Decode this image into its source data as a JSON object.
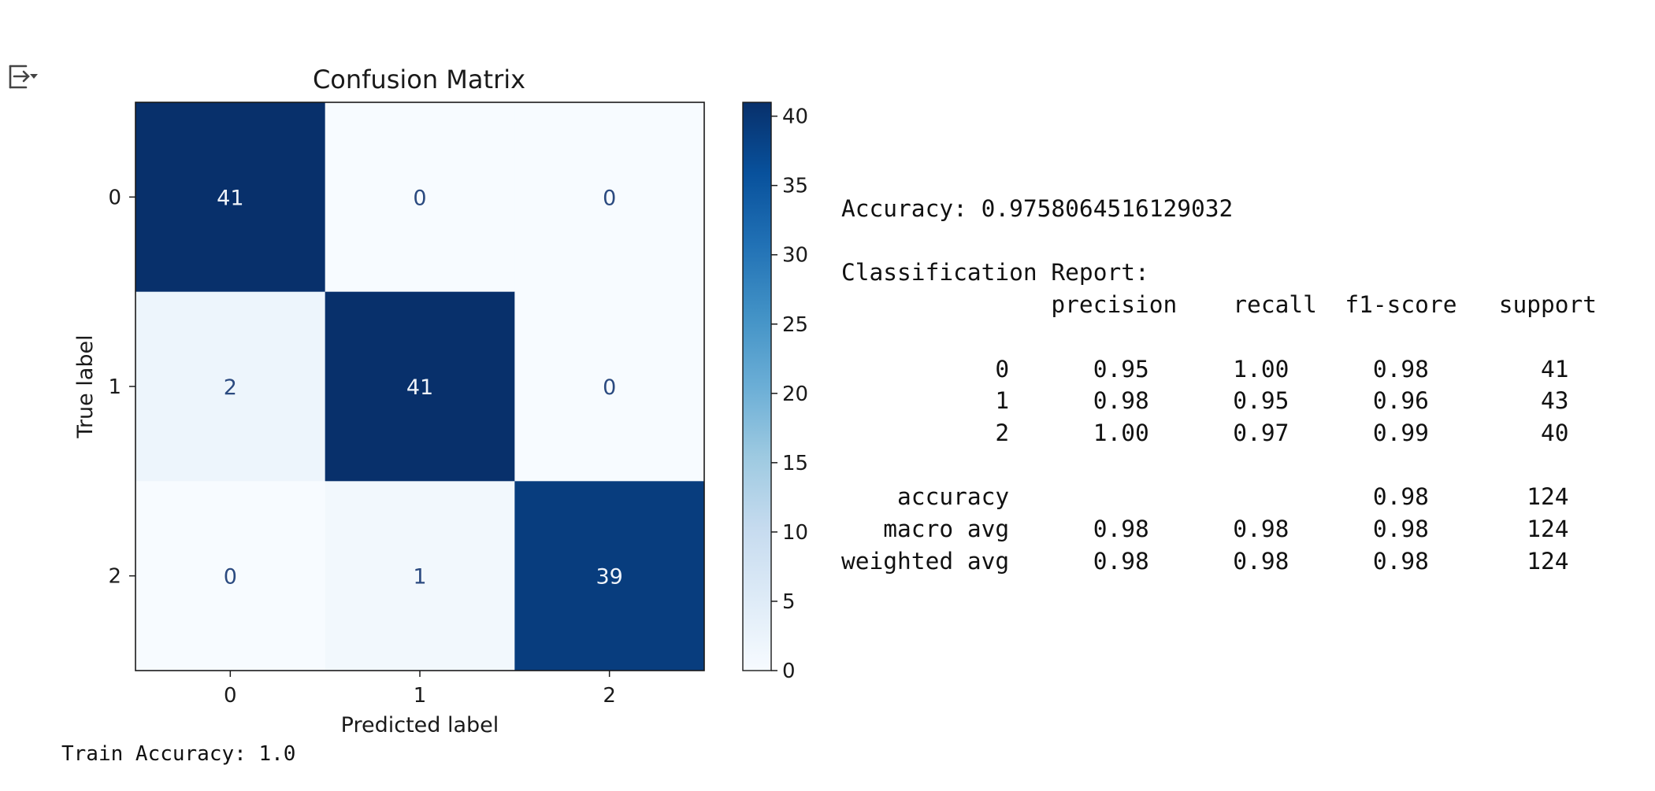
{
  "toolbar": {
    "output_icon": "output-toggle-icon"
  },
  "chart_data": {
    "type": "heatmap",
    "title": "Confusion Matrix",
    "xlabel": "Predicted label",
    "ylabel": "True label",
    "x_categories": [
      "0",
      "1",
      "2"
    ],
    "y_categories": [
      "0",
      "1",
      "2"
    ],
    "matrix": [
      [
        41,
        0,
        0
      ],
      [
        2,
        41,
        0
      ],
      [
        0,
        1,
        39
      ]
    ],
    "colormap": "Blues",
    "colorbar": {
      "range": [
        0,
        41
      ],
      "ticks": [
        0,
        5,
        10,
        15,
        20,
        25,
        30,
        35,
        40
      ]
    },
    "grid": false
  },
  "report": {
    "accuracy_line": "Accuracy: 0.9758064516129032",
    "report_title": "Classification Report:",
    "header": [
      "precision",
      "recall",
      "f1-score",
      "support"
    ],
    "rows": [
      {
        "label": "0",
        "values": [
          "0.95",
          "1.00",
          "0.98",
          "41"
        ]
      },
      {
        "label": "1",
        "values": [
          "0.98",
          "0.95",
          "0.96",
          "43"
        ]
      },
      {
        "label": "2",
        "values": [
          "1.00",
          "0.97",
          "0.99",
          "40"
        ]
      }
    ],
    "summary": [
      {
        "label": "accuracy",
        "values": [
          "",
          "",
          "0.98",
          "124"
        ]
      },
      {
        "label": "macro avg",
        "values": [
          "0.98",
          "0.98",
          "0.98",
          "124"
        ]
      },
      {
        "label": "weighted avg",
        "values": [
          "0.98",
          "0.98",
          "0.98",
          "124"
        ]
      }
    ]
  },
  "train_accuracy": "Train Accuracy: 1.0"
}
